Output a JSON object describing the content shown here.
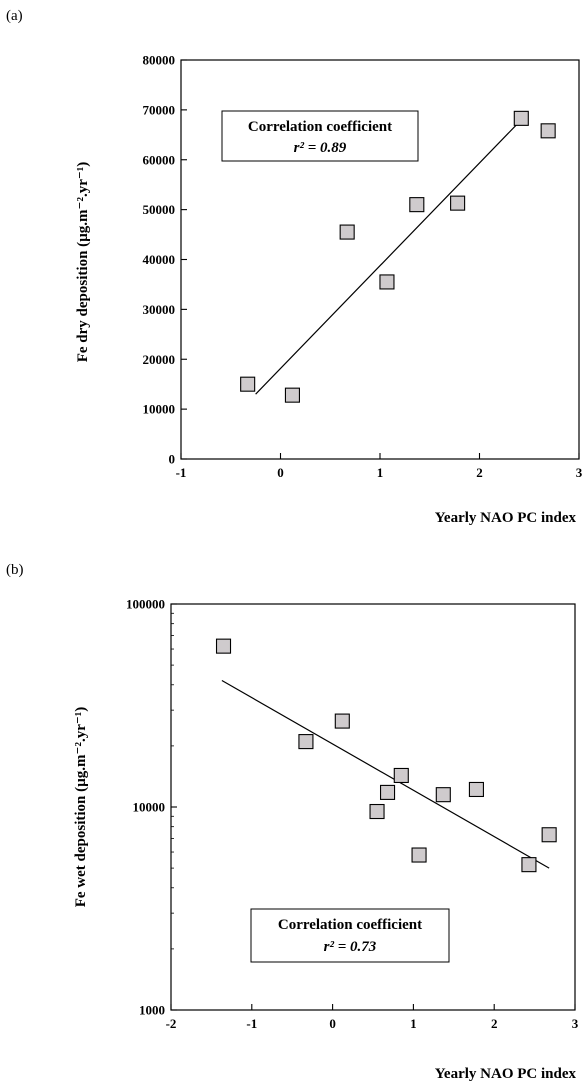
{
  "chart_data": [
    {
      "type": "scatter",
      "panel_label": "(a)",
      "xlabel": "Yearly NAO PC index",
      "ylabel": "Fe dry deposition (µg.m⁻².yr⁻¹)",
      "xlim": [
        -1,
        3
      ],
      "ylim": [
        0,
        80000
      ],
      "yscale": "linear",
      "x_ticks": [
        -1,
        0,
        1,
        2,
        3
      ],
      "y_ticks": [
        0,
        10000,
        20000,
        30000,
        40000,
        50000,
        60000,
        70000,
        80000
      ],
      "points": [
        {
          "x": -0.33,
          "y": 15000
        },
        {
          "x": 0.12,
          "y": 12800
        },
        {
          "x": 0.67,
          "y": 45500
        },
        {
          "x": 1.07,
          "y": 35500
        },
        {
          "x": 1.37,
          "y": 51000
        },
        {
          "x": 1.78,
          "y": 51300
        },
        {
          "x": 2.42,
          "y": 68300
        },
        {
          "x": 2.69,
          "y": 65800
        }
      ],
      "fit_line": {
        "x1": -0.25,
        "y1": 13000,
        "x2": 2.42,
        "y2": 68000
      },
      "annotation": {
        "title": "Correlation coefficient",
        "value": "r² = 0.89",
        "placement": "top-left"
      }
    },
    {
      "type": "scatter",
      "panel_label": "(b)",
      "xlabel": "Yearly NAO PC index",
      "ylabel": "Fe wet deposition (µg.m⁻².yr⁻¹)",
      "xlim": [
        -2,
        3
      ],
      "ylim": [
        1000,
        100000
      ],
      "yscale": "log",
      "x_ticks": [
        -2,
        -1,
        0,
        1,
        2,
        3
      ],
      "y_ticks": [
        1000,
        10000,
        100000
      ],
      "points": [
        {
          "x": -1.35,
          "y": 62000
        },
        {
          "x": -0.33,
          "y": 21000
        },
        {
          "x": 0.12,
          "y": 26500
        },
        {
          "x": 0.55,
          "y": 9500
        },
        {
          "x": 0.68,
          "y": 11800
        },
        {
          "x": 0.85,
          "y": 14300
        },
        {
          "x": 1.07,
          "y": 5800
        },
        {
          "x": 1.37,
          "y": 11500
        },
        {
          "x": 1.78,
          "y": 12200
        },
        {
          "x": 2.43,
          "y": 5200
        },
        {
          "x": 2.68,
          "y": 7300
        }
      ],
      "fit_line": {
        "x1": -1.37,
        "y1": 42000,
        "x2": 2.68,
        "y2": 5000
      },
      "annotation": {
        "title": "Correlation coefficient",
        "value": "r² = 0.73",
        "placement": "bottom-center"
      }
    }
  ]
}
